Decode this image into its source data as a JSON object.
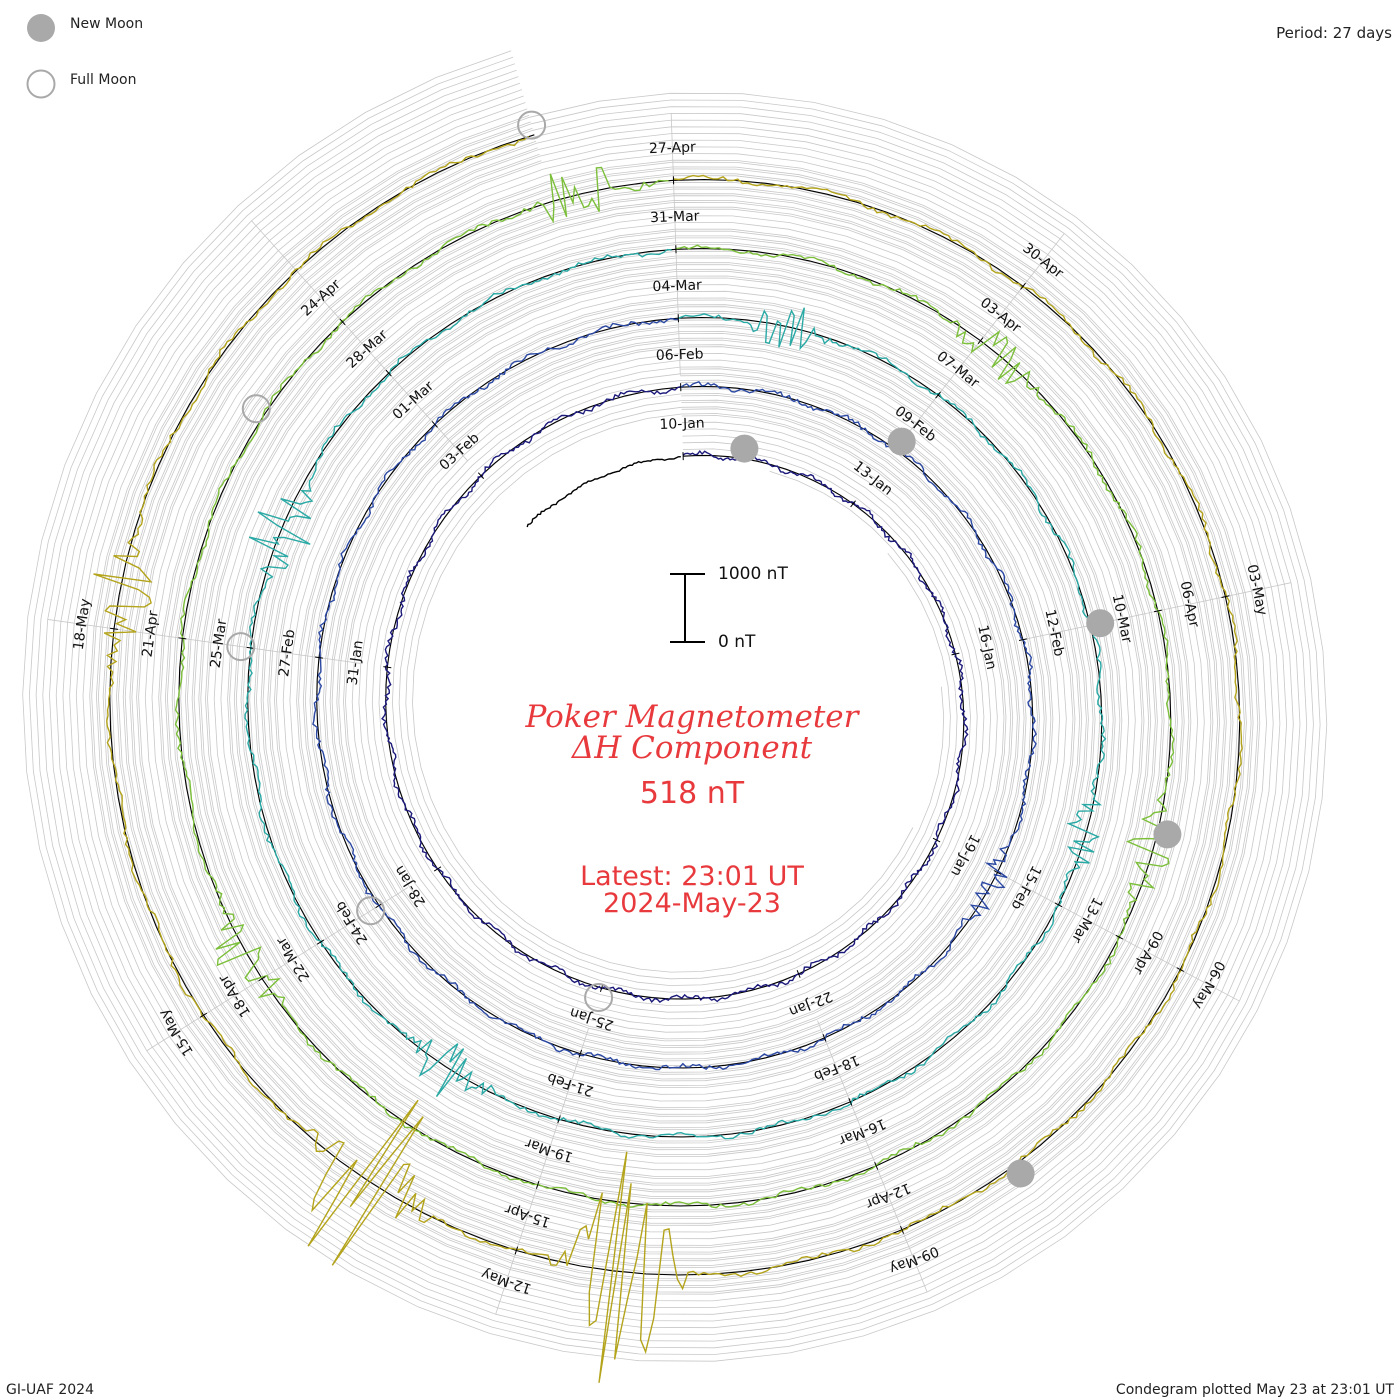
{
  "legend": {
    "new_moon_label": "New Moon",
    "full_moon_label": "Full Moon"
  },
  "header": {
    "period_label": "Period: 27 days"
  },
  "footer": {
    "left_label": "GI-UAF 2024",
    "right_label": "Condegram plotted May 23 at 23:01 UT"
  },
  "scale_bar": {
    "top_label": "1000 nT",
    "bottom_label": "0 nT"
  },
  "center": {
    "title_line1": "Poker Magnetometer",
    "title_line2": "ΔH Component",
    "value": "518 nT",
    "latest_line": "Latest: 23:01 UT",
    "date_line": "2024-May-23"
  },
  "colors": {
    "title": "#e8393d",
    "moon": "#a9a9a9",
    "grid": "#c8c8c8",
    "baseline": "#000000"
  },
  "chart_data": {
    "type": "line",
    "title": "Poker Magnetometer ΔH Component",
    "units": "nT",
    "period_days": 27,
    "start_date": "2024-01-10",
    "scale_reference_nT": [
      0,
      1000
    ],
    "series_colors": [
      "#000000",
      "#1c1a7a",
      "#2c49a3",
      "#2aa9a5",
      "#7cbf3a",
      "#b4a41c",
      "#c0711c",
      "#c8411c"
    ],
    "date_labels": [
      {
        "day": 0,
        "label": "10-Jan"
      },
      {
        "day": 3,
        "label": "13-Jan"
      },
      {
        "day": 6,
        "label": "16-Jan"
      },
      {
        "day": 9,
        "label": "19-Jan"
      },
      {
        "day": 12,
        "label": "22-Jan"
      },
      {
        "day": 15,
        "label": "25-Jan"
      },
      {
        "day": 18,
        "label": "28-Jan"
      },
      {
        "day": 21,
        "label": "31-Jan"
      },
      {
        "day": 24,
        "label": "03-Feb"
      },
      {
        "day": 27,
        "label": "06-Feb"
      },
      {
        "day": 30,
        "label": "09-Feb"
      },
      {
        "day": 33,
        "label": "12-Feb"
      },
      {
        "day": 36,
        "label": "15-Feb"
      },
      {
        "day": 39,
        "label": "18-Feb"
      },
      {
        "day": 42,
        "label": "21-Feb"
      },
      {
        "day": 45,
        "label": "24-Feb"
      },
      {
        "day": 48,
        "label": "27-Feb"
      },
      {
        "day": 51,
        "label": "01-Mar"
      },
      {
        "day": 54,
        "label": "04-Mar"
      },
      {
        "day": 57,
        "label": "07-Mar"
      },
      {
        "day": 60,
        "label": "10-Mar"
      },
      {
        "day": 63,
        "label": "13-Mar"
      },
      {
        "day": 66,
        "label": "16-Mar"
      },
      {
        "day": 69,
        "label": "19-Mar"
      },
      {
        "day": 72,
        "label": "22-Mar"
      },
      {
        "day": 75,
        "label": "25-Mar"
      },
      {
        "day": 78,
        "label": "28-Mar"
      },
      {
        "day": 81,
        "label": "31-Mar"
      },
      {
        "day": 84,
        "label": "03-Apr"
      },
      {
        "day": 87,
        "label": "06-Apr"
      },
      {
        "day": 90,
        "label": "09-Apr"
      },
      {
        "day": 93,
        "label": "12-Apr"
      },
      {
        "day": 96,
        "label": "15-Apr"
      },
      {
        "day": 99,
        "label": "18-Apr"
      },
      {
        "day": 102,
        "label": "21-Apr"
      },
      {
        "day": 105,
        "label": "24-Apr"
      },
      {
        "day": 108,
        "label": "27-Apr"
      },
      {
        "day": 111,
        "label": "30-Apr"
      },
      {
        "day": 114,
        "label": "03-May"
      },
      {
        "day": 117,
        "label": "06-May"
      },
      {
        "day": 120,
        "label": "09-May"
      },
      {
        "day": 123,
        "label": "12-May"
      },
      {
        "day": 126,
        "label": "15-May"
      },
      {
        "day": 129,
        "label": "18-May"
      }
    ],
    "new_moons": [
      "11-Jan",
      "09-Feb",
      "10-Mar",
      "08-Apr",
      "08-May"
    ],
    "full_moons": [
      "25-Jan",
      "24-Feb",
      "25-Mar",
      "23-Apr",
      "23-May"
    ],
    "disturbances": [
      {
        "day": 36,
        "peak_nT": 300
      },
      {
        "day": 55,
        "peak_nT": 450
      },
      {
        "day": 62,
        "peak_nT": 380
      },
      {
        "day": 70,
        "peak_nT": 520
      },
      {
        "day": 76,
        "peak_nT": 600
      },
      {
        "day": 84,
        "peak_nT": 420
      },
      {
        "day": 89,
        "peak_nT": 480
      },
      {
        "day": 99,
        "peak_nT": 500
      },
      {
        "day": 107,
        "peak_nT": 560
      },
      {
        "day": 122,
        "peak_nT": 2000
      },
      {
        "day": 124,
        "peak_nT": 1600
      },
      {
        "day": 129,
        "peak_nT": 650
      }
    ]
  }
}
